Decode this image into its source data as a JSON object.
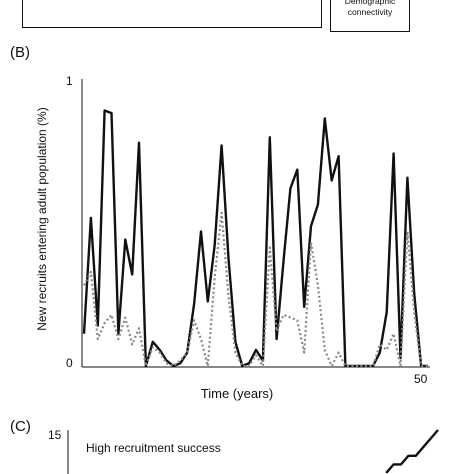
{
  "panel_a": {
    "box_label": "Demographic\nconnectivity"
  },
  "panel_b": {
    "label": "(B)"
  },
  "panel_c": {
    "label": "(C)",
    "ytick_max": "15",
    "annotation": "High recruitment success"
  },
  "chart_data": [
    {
      "type": "line",
      "title": "",
      "xlabel": "Time (years)",
      "ylabel": "New recruits entering adult population (%)",
      "xlim": [
        0,
        50
      ],
      "ylim": [
        0,
        1
      ],
      "x_tick_labels": [
        "50"
      ],
      "y_tick_labels": [
        "0",
        "1"
      ],
      "grid": false,
      "legend": "none",
      "series": [
        {
          "style": "solid",
          "color": "#111111",
          "x": [
            0,
            1,
            2,
            3,
            4,
            5,
            6,
            7,
            8,
            9,
            10,
            11,
            12,
            13,
            14,
            15,
            16,
            17,
            18,
            19,
            20,
            21,
            22,
            23,
            24,
            25,
            26,
            27,
            28,
            29,
            30,
            31,
            32,
            33,
            34,
            35,
            36,
            37,
            38,
            39,
            40,
            41,
            42,
            43,
            44,
            45,
            46,
            47,
            48,
            49,
            50
          ],
          "y": [
            0.12,
            0.55,
            0.15,
            0.95,
            0.94,
            0.12,
            0.47,
            0.34,
            0.83,
            0.0,
            0.09,
            0.06,
            0.02,
            0.0,
            0.01,
            0.05,
            0.23,
            0.5,
            0.24,
            0.45,
            0.82,
            0.4,
            0.09,
            0.0,
            0.01,
            0.06,
            0.02,
            0.85,
            0.1,
            0.39,
            0.66,
            0.73,
            0.22,
            0.52,
            0.6,
            0.92,
            0.69,
            0.78,
            0.0,
            0.0,
            0.0,
            0.0,
            0.0,
            0.05,
            0.2,
            0.79,
            0.03,
            0.7,
            0.27,
            0.0,
            0.0
          ]
        },
        {
          "style": "dotted",
          "color": "#888888",
          "x": [
            0,
            1,
            2,
            3,
            4,
            5,
            6,
            7,
            8,
            9,
            10,
            11,
            12,
            13,
            14,
            15,
            16,
            17,
            18,
            19,
            20,
            21,
            22,
            23,
            24,
            25,
            26,
            27,
            28,
            29,
            30,
            31,
            32,
            33,
            34,
            35,
            36,
            37,
            38,
            39,
            40,
            41,
            42,
            43,
            44,
            45,
            46,
            47,
            48,
            49,
            50
          ],
          "y": [
            0.3,
            0.35,
            0.1,
            0.16,
            0.19,
            0.1,
            0.18,
            0.08,
            0.14,
            0.0,
            0.07,
            0.05,
            0.01,
            0.0,
            0.02,
            0.05,
            0.17,
            0.1,
            0.0,
            0.33,
            0.57,
            0.26,
            0.05,
            0.0,
            0.0,
            0.04,
            0.0,
            0.44,
            0.13,
            0.19,
            0.18,
            0.17,
            0.05,
            0.46,
            0.3,
            0.06,
            0.0,
            0.05,
            0.0,
            0.0,
            0.0,
            0.0,
            0.0,
            0.08,
            0.06,
            0.12,
            0.0,
            0.5,
            0.2,
            0.0,
            0.0
          ]
        }
      ]
    },
    {
      "type": "line",
      "title": "",
      "ylim": [
        0,
        15
      ],
      "y_tick_labels": [
        "15"
      ],
      "series": [
        {
          "style": "solid",
          "color": "#111111",
          "x": [
            43,
            44,
            45,
            46,
            47,
            48,
            49,
            50
          ],
          "y": [
            0,
            3,
            3,
            6,
            6,
            9,
            12,
            15
          ]
        }
      ]
    }
  ]
}
